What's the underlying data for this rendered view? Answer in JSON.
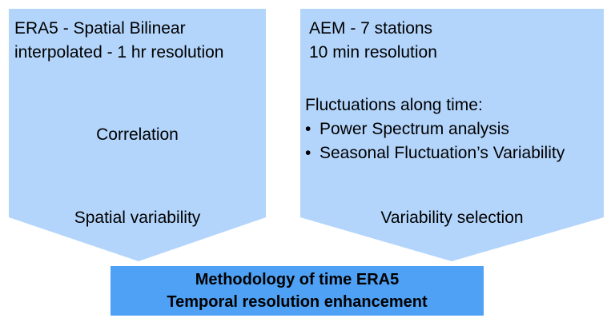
{
  "colors": {
    "arrow_fill": "#b3d5fb",
    "result_fill": "#4ea1f4"
  },
  "left_arrow": {
    "title_line1": "ERA5 - Spatial Bilinear",
    "title_line2": "interpolated - 1 hr resolution",
    "middle": "Correlation",
    "bottom": "Spatial variability"
  },
  "right_arrow": {
    "title_line1": "AEM - 7 stations",
    "title_line2": "10 min resolution",
    "fluct_heading": "Fluctuations along time:",
    "bullets": [
      "Power Spectrum analysis",
      "Seasonal Fluctuation’s Variability"
    ],
    "bottom": "Variability selection"
  },
  "result_box": {
    "line1": "Methodology of time ERA5",
    "line2": "Temporal resolution enhancement"
  }
}
